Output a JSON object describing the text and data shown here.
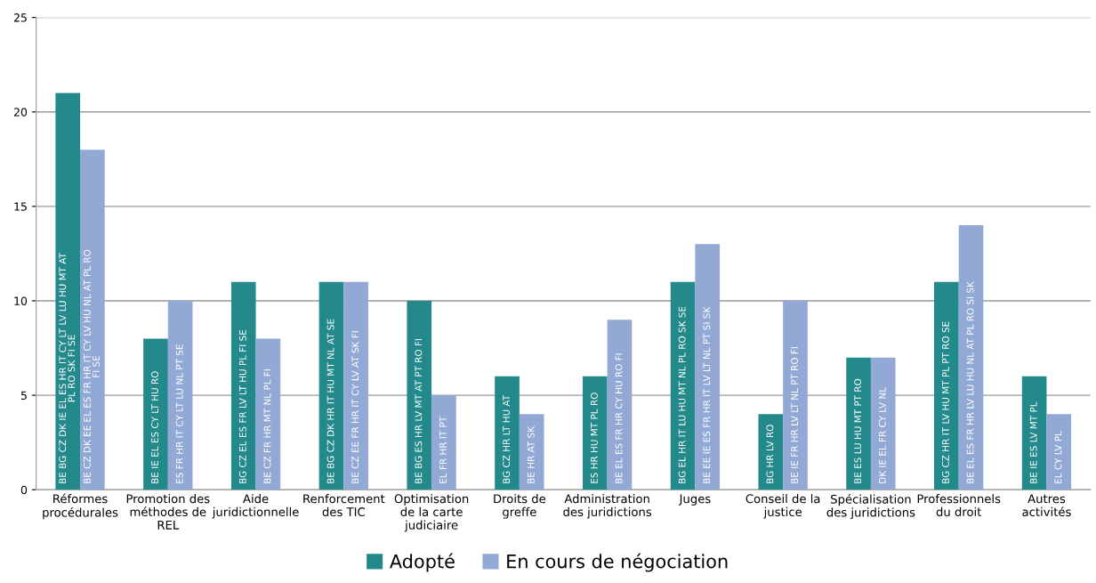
{
  "chart_data": {
    "type": "bar",
    "categories": [
      "Réformes\nprocédurales",
      "Promotion des\nméthodes de\nREL",
      "Aide\njuridictionnelle",
      "Renforcement\ndes TIC",
      "Optimisation\nde la carte\njudiciaire",
      "Droits de\ngreffe",
      "Administration\ndes juridictions",
      "Juges",
      "Conseil de la\njustice",
      "Spécialisation\ndes juridictions",
      "Professionnels\ndu droit",
      "Autres\nactivités"
    ],
    "series": [
      {
        "name": "Adopté",
        "color": "#23898b",
        "values": [
          21,
          8,
          11,
          11,
          10,
          6,
          6,
          11,
          4,
          7,
          11,
          6
        ],
        "value_labels": [
          "BE BG CZ DK IE EL ES HR IT CY LT LV LU HU MT AT\nPL RO SK FI SE",
          "BE IE EL ES CY LT HU RO",
          "BG CZ EL ES FR LV LT HU PL FI SE",
          "BE BG CZ DK HR IT HU MT NL AT SE",
          "BE BG ES HR LV MT AT PT RO FI",
          "BG CZ HR LT HU AT",
          "ES HR HU MT PL RO",
          "BG EL HR IT LU HU MT NL PL RO SK SE",
          "BG HR LV RO",
          "BE ES LU HU MT PT RO",
          "BG CZ HR IT LV HU MT PL PT RO SE",
          "BE IE ES LV MT PL"
        ]
      },
      {
        "name": "En cours de négociation",
        "color": "#92a9d5",
        "values": [
          18,
          10,
          8,
          11,
          5,
          4,
          9,
          13,
          10,
          7,
          14,
          4
        ],
        "value_labels": [
          "BE CZ DK EE EL ES FR HR IT CY LV HU NL AT PL RO\nFI SE",
          "ES FR HR IT CY LT LU NL PT SE",
          "BE CZ FR HR MT NL PL FI",
          "BE CZ EE FR HR IT CY LV AT SK FI",
          "EL FR HR IT PT",
          "BE HR AT SK",
          "BE EL ES FR HR CY HU RO FI",
          "BE EE IE ES FR HR IT LV LT NL PT SI SK",
          "BE IE FR HR LV LT NL PT RO FI",
          "DK IE EL FR CY LV NL",
          "BE EL ES FR HR LV LU HU NL AT PL RO SI SK",
          "EL CY LV PL"
        ]
      }
    ],
    "ylim": [
      0,
      25
    ],
    "yticks": [
      0,
      5,
      10,
      15,
      20,
      25
    ],
    "grid": "y",
    "legend": "bottom"
  }
}
